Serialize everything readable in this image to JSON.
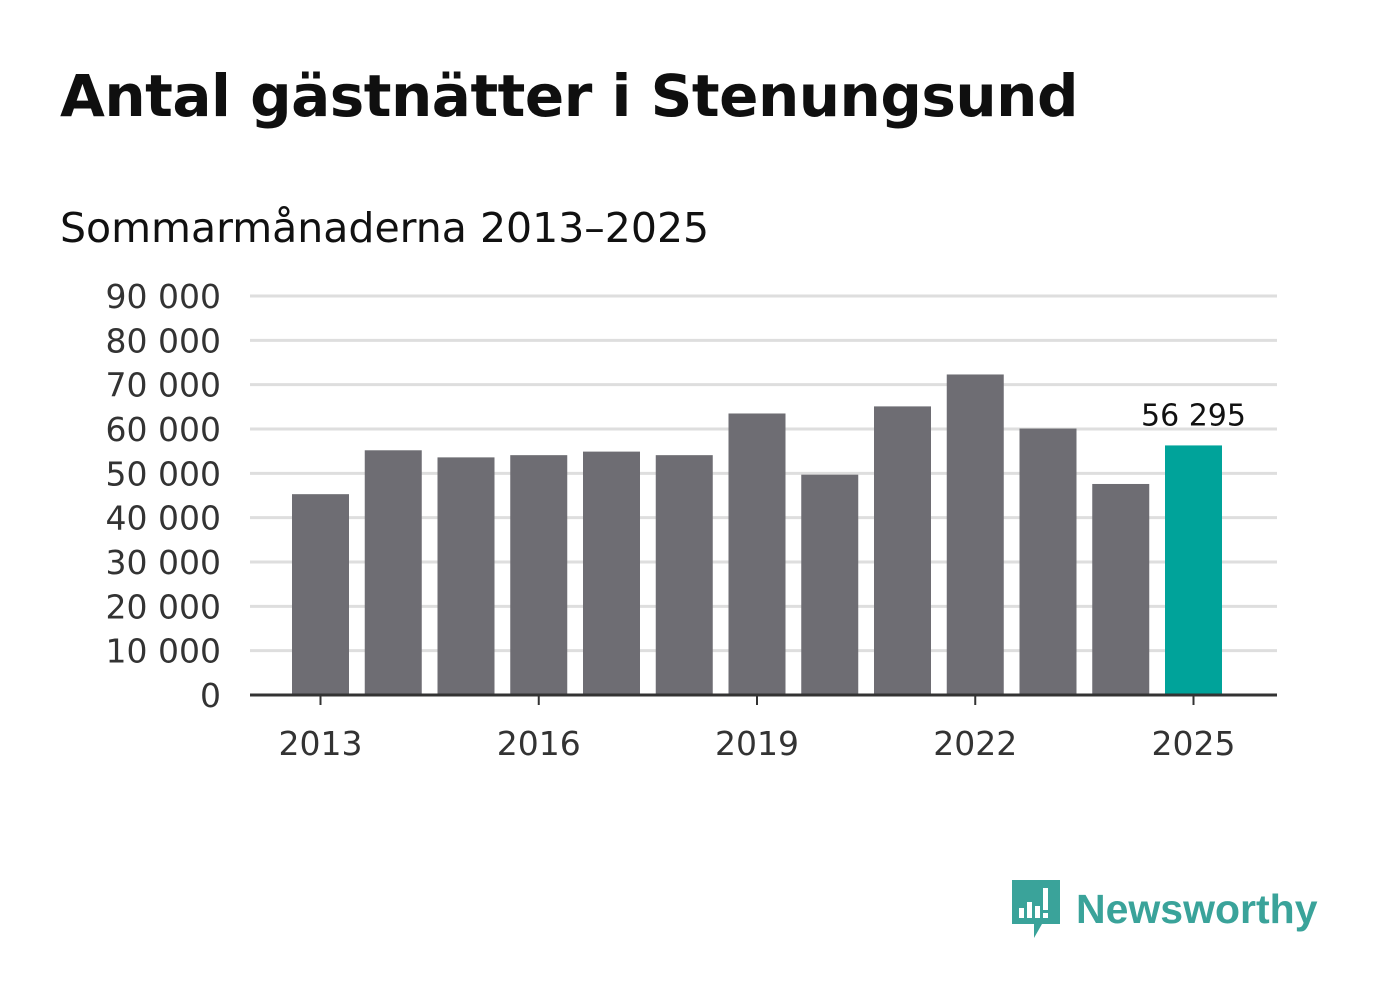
{
  "title": "Antal gästnätter i Stenungsund",
  "subtitle": "Sommarmånaderna 2013–2025",
  "brand": {
    "name": "Newsworthy",
    "icon": "newsworthy-logo-icon",
    "color": "#3aa39a"
  },
  "chart_data": {
    "type": "bar",
    "title": "Antal gästnätter i Stenungsund",
    "subtitle": "Sommarmånaderna 2013–2025",
    "categories": [
      "2013",
      "2014",
      "2015",
      "2016",
      "2017",
      "2018",
      "2019",
      "2020",
      "2021",
      "2022",
      "2023",
      "2024",
      "2025"
    ],
    "values": [
      45300,
      55200,
      53600,
      54100,
      54900,
      54100,
      63500,
      49700,
      65100,
      72300,
      60100,
      47600,
      56295
    ],
    "x_tick_labels": [
      "2013",
      "2016",
      "2019",
      "2022",
      "2025"
    ],
    "y_tick_labels": [
      "0",
      "10 000",
      "20 000",
      "30 000",
      "40 000",
      "50 000",
      "60 000",
      "70 000",
      "80 000",
      "90 000"
    ],
    "ylim": [
      0,
      90000
    ],
    "grid": true,
    "xlabel": "",
    "ylabel": "",
    "colors": {
      "default": "#6e6d73",
      "highlight": "#00a39a",
      "grid": "#dedede",
      "axis": "#333333"
    },
    "highlight_index": 12,
    "annotations": [
      {
        "category": "2025",
        "text": "56 295"
      }
    ]
  }
}
